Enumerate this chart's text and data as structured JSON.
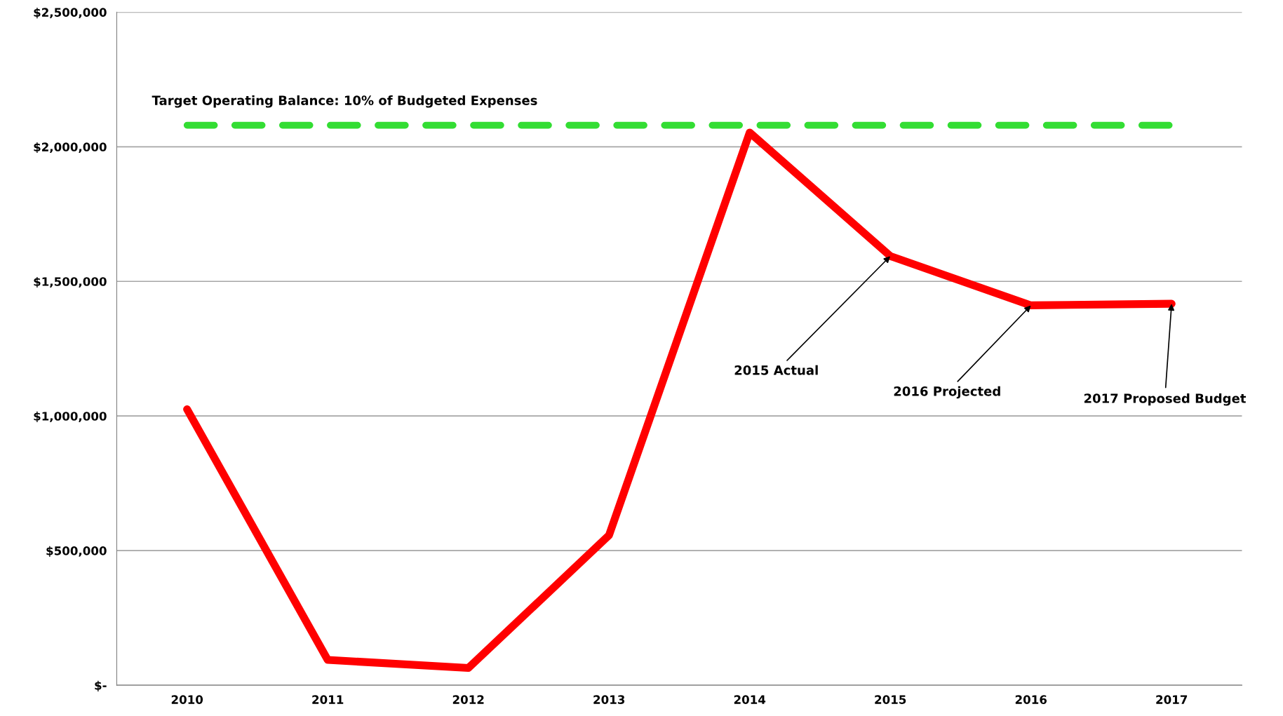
{
  "chart_data": {
    "type": "line",
    "categories": [
      "2010",
      "2011",
      "2012",
      "2013",
      "2014",
      "2015",
      "2016",
      "2017"
    ],
    "series": [
      {
        "color": "#ff0000",
        "values": [
          1025000,
          94000,
          64000,
          557000,
          2053000,
          1594000,
          1411000,
          1417000
        ]
      }
    ],
    "ylim": [
      0,
      2500000
    ],
    "yticks": [
      {
        "value": 0,
        "label": "$-"
      },
      {
        "value": 500000,
        "label": "$500,000"
      },
      {
        "value": 1000000,
        "label": "$1,000,000"
      },
      {
        "value": 1500000,
        "label": "$1,500,000"
      },
      {
        "value": 2000000,
        "label": "$2,000,000"
      },
      {
        "value": 2500000,
        "label": "$2,500,000"
      }
    ],
    "grid": "y",
    "marker": "none",
    "line_style": "solid",
    "ref_lines": [
      {
        "axis": "y",
        "value": 2080000,
        "color": "#33dd33",
        "line_style": "dashed"
      }
    ],
    "annotations": [
      "Target Operating Balance: 10% of Budgeted Expenses",
      {
        "text": "2015 Actual",
        "x": "2015",
        "y": 1594000
      },
      {
        "text": "2016 Projected",
        "x": "2016",
        "y": 1411000
      },
      {
        "text": "2017 Proposed Budget",
        "x": "2017",
        "y": 1417000
      }
    ]
  }
}
